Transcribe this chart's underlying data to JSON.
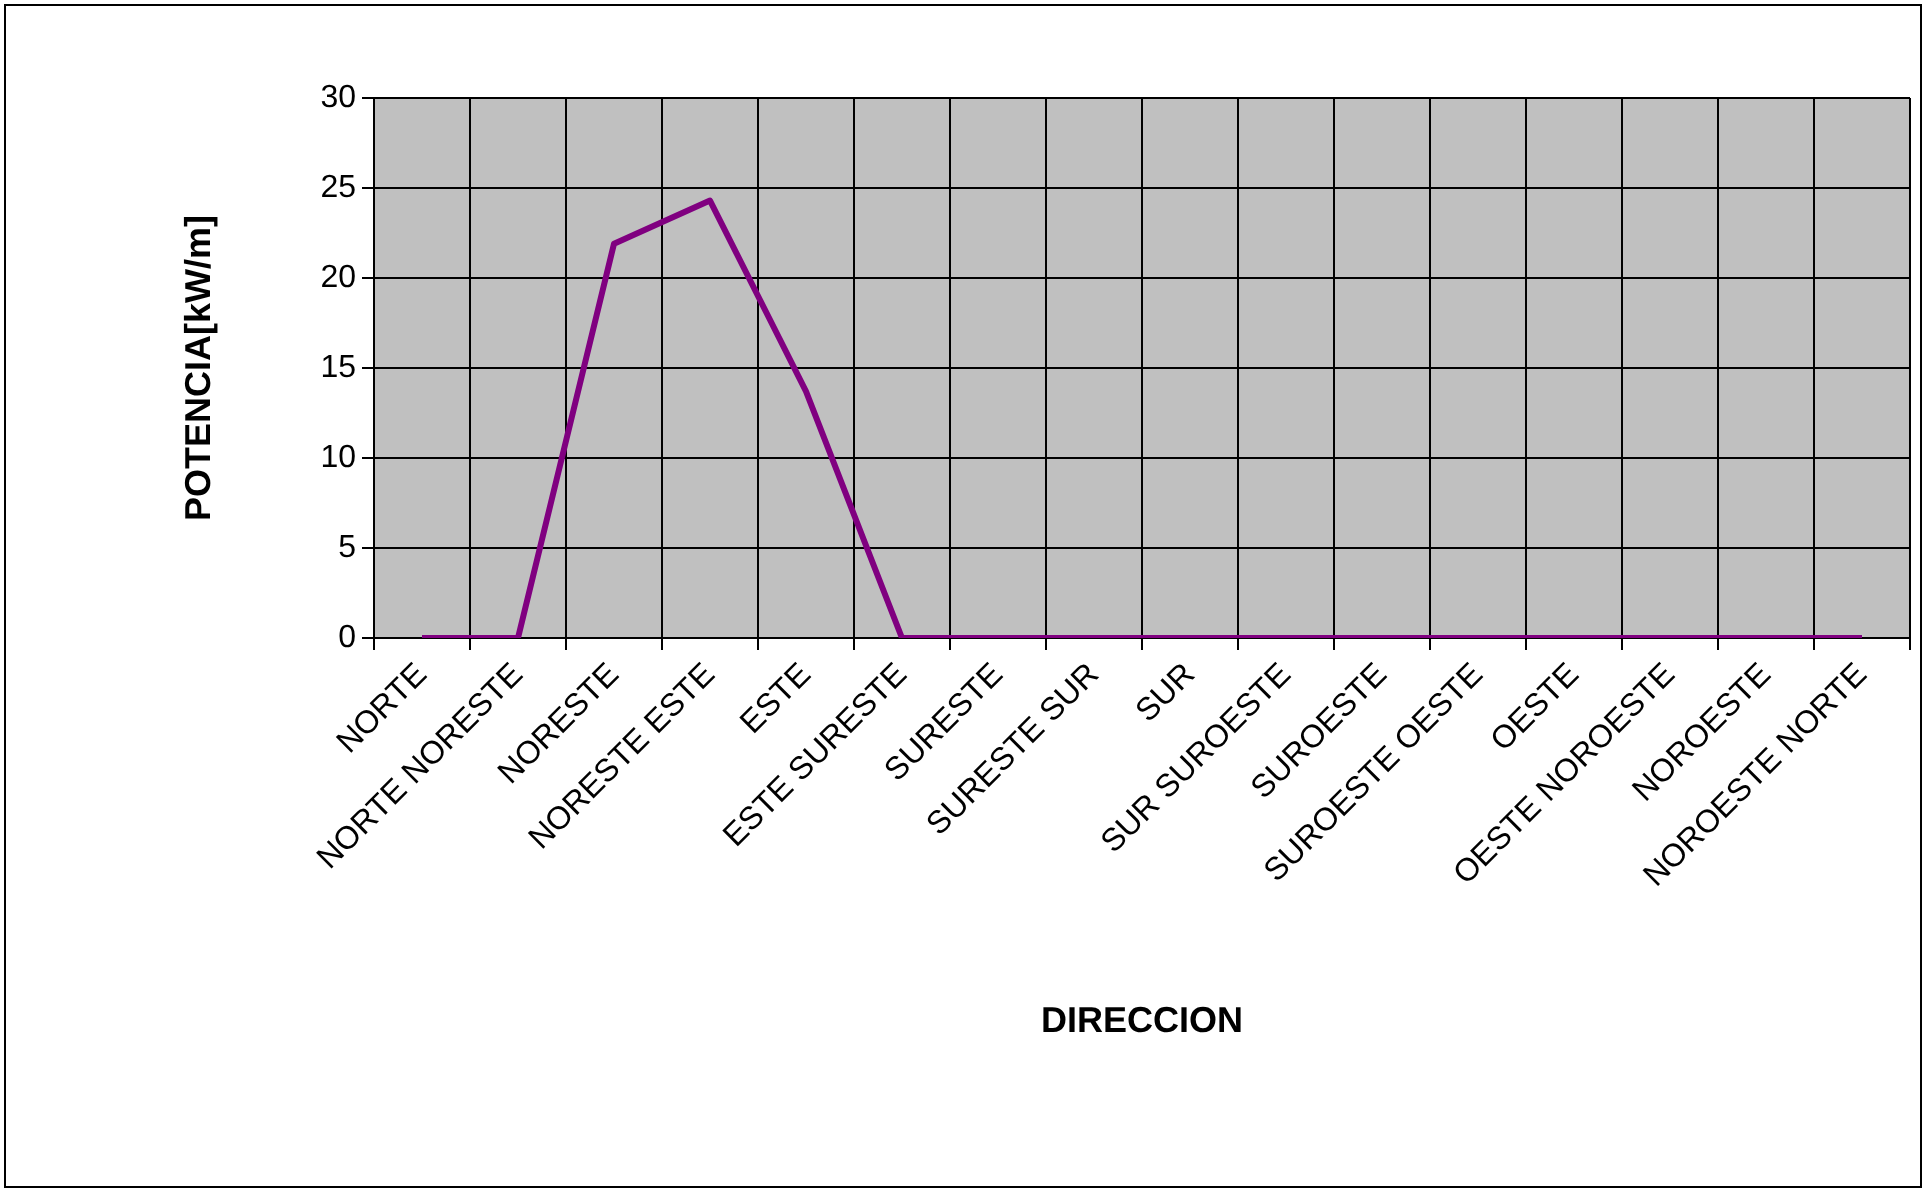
{
  "chart_data": {
    "type": "line",
    "xlabel": "DIRECCION",
    "ylabel": "POTENCIA[kW/m]",
    "categories": [
      "NORTE",
      "NORTE NORESTE",
      "NORESTE",
      "NORESTE ESTE",
      "ESTE",
      "ESTE SURESTE",
      "SURESTE",
      "SURESTE SUR",
      "SUR",
      "SUR SUROESTE",
      "SUROESTE",
      "SUROESTE OESTE",
      "OESTE",
      "OESTE NOROESTE",
      "NOROESTE",
      "NOROESTE NORTE"
    ],
    "values": [
      0,
      0,
      21.9,
      24.3,
      13.7,
      0,
      0,
      0,
      0,
      0,
      0,
      0,
      0,
      0,
      0,
      0
    ],
    "color": "#800080",
    "ylim": [
      0,
      30
    ],
    "yticks": [
      0,
      5,
      10,
      15,
      20,
      25,
      30
    ],
    "grid": true,
    "legend": false,
    "marker": "none",
    "line_style": "solid"
  }
}
